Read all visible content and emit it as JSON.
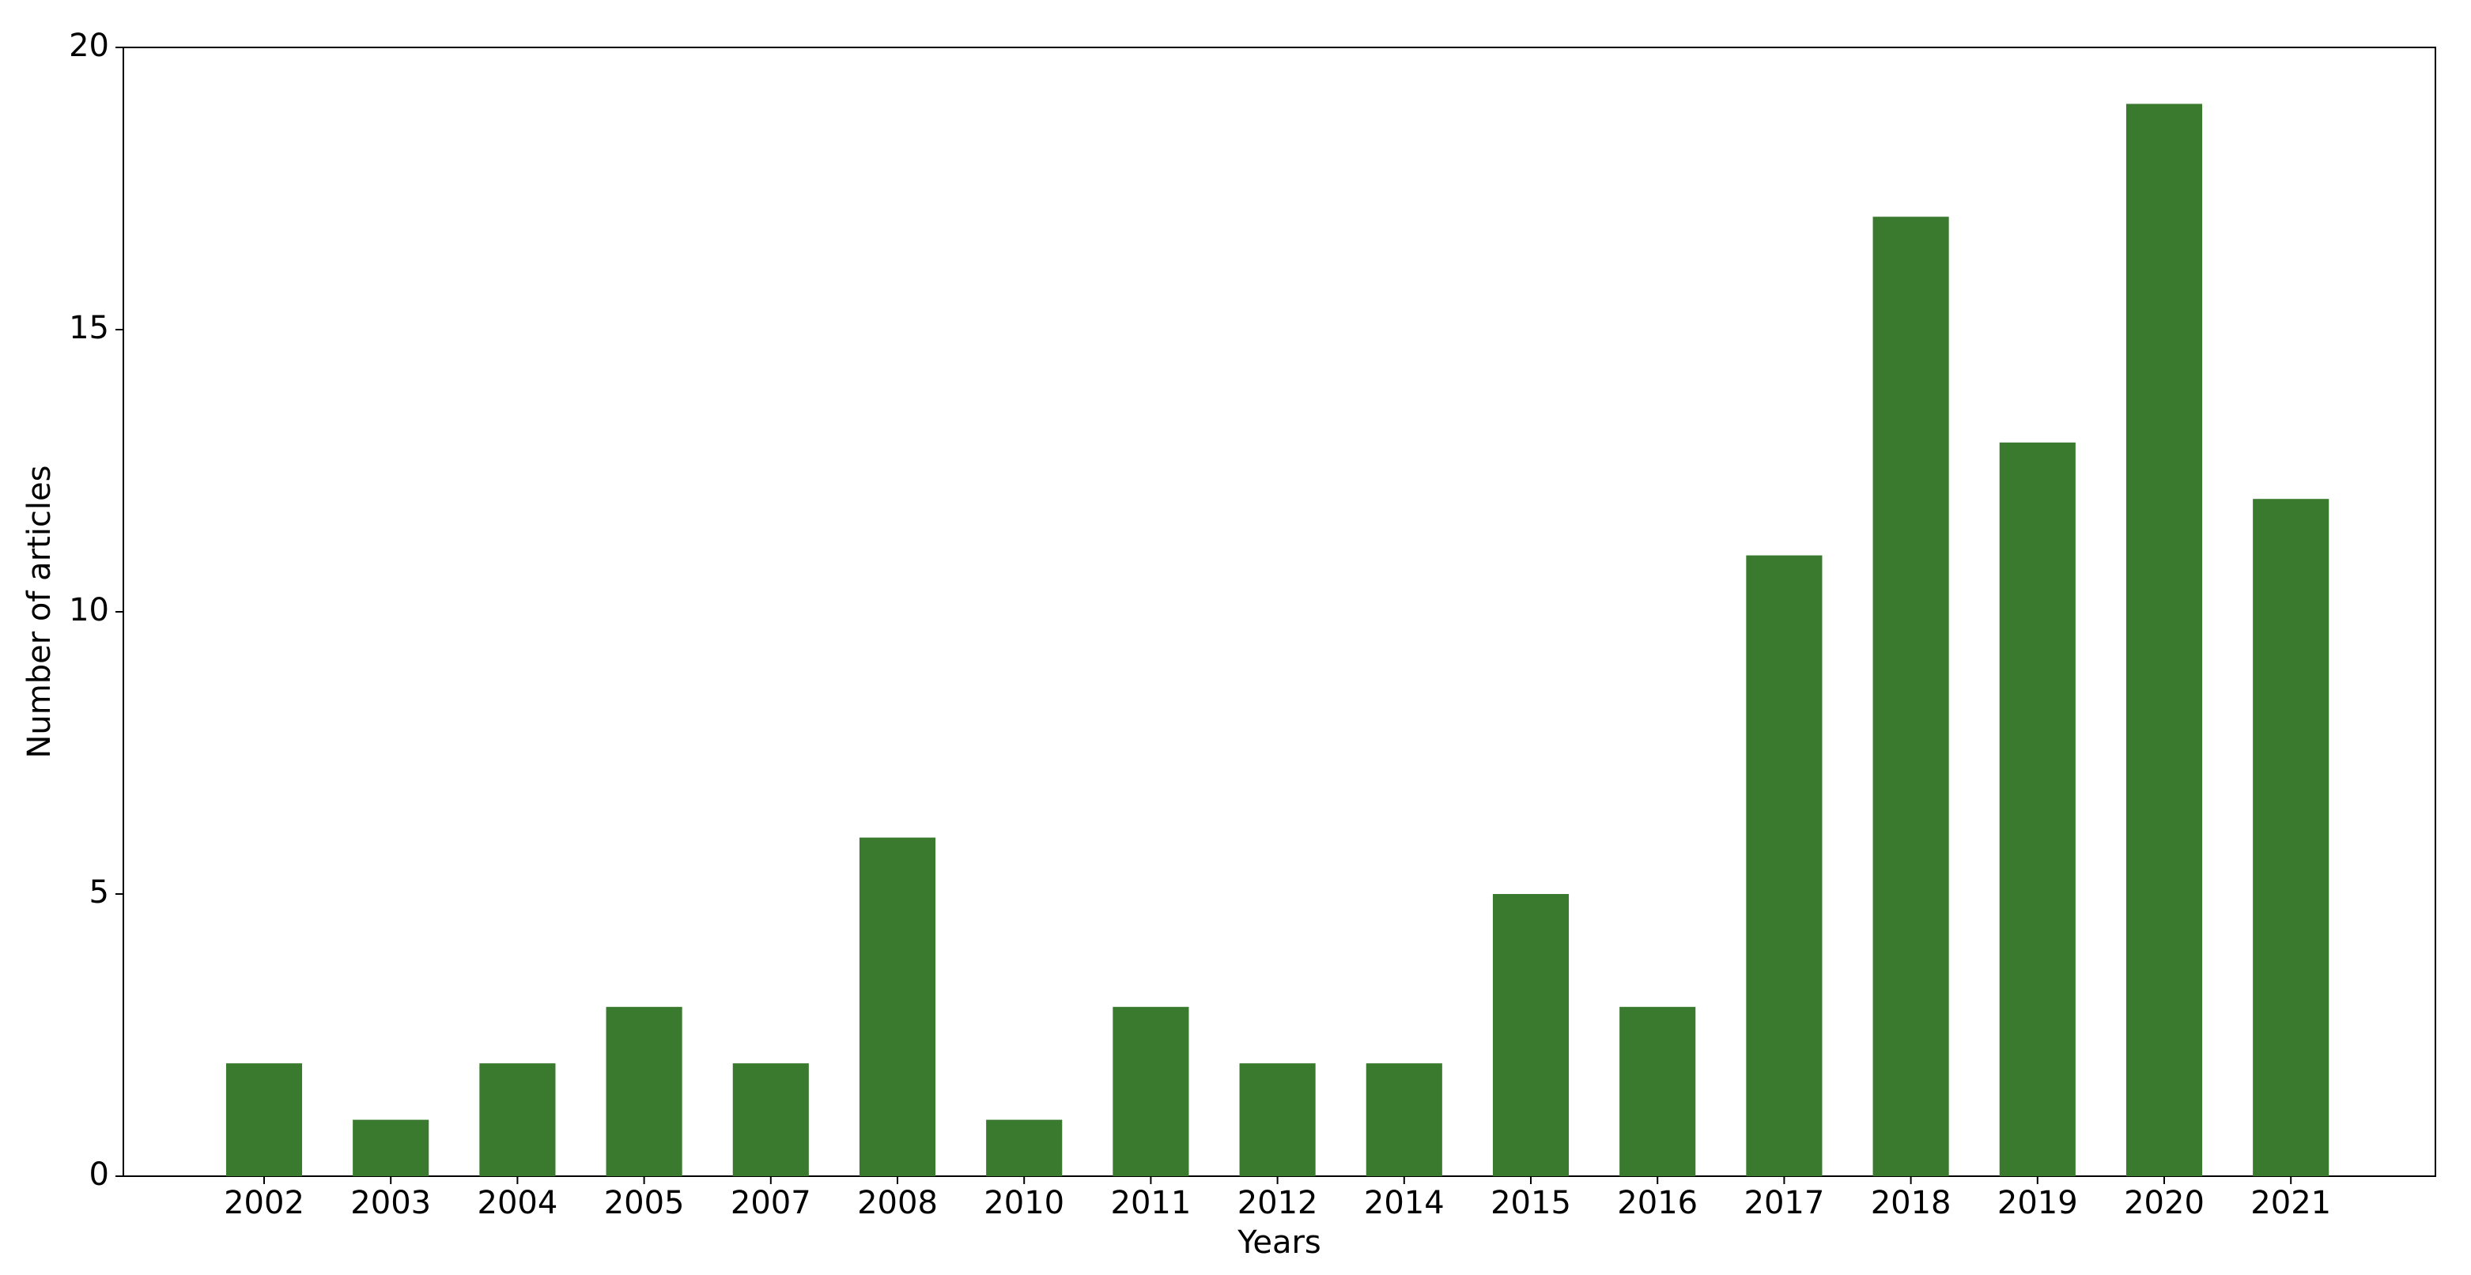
{
  "chart_data": {
    "type": "bar",
    "x_label": "Years",
    "y_label": "Number of articles",
    "categories": [
      "2002",
      "2003",
      "2004",
      "2005",
      "2007",
      "2008",
      "2010",
      "2011",
      "2012",
      "2014",
      "2015",
      "2016",
      "2017",
      "2018",
      "2019",
      "2020",
      "2021"
    ],
    "values": [
      2,
      1,
      2,
      3,
      2,
      6,
      1,
      3,
      2,
      2,
      5,
      3,
      11,
      17,
      13,
      19,
      12
    ],
    "color": "#3a7a2e",
    "ylim": [
      0,
      20
    ],
    "yticks": [
      0,
      5,
      10,
      15,
      20
    ],
    "grid": false
  }
}
